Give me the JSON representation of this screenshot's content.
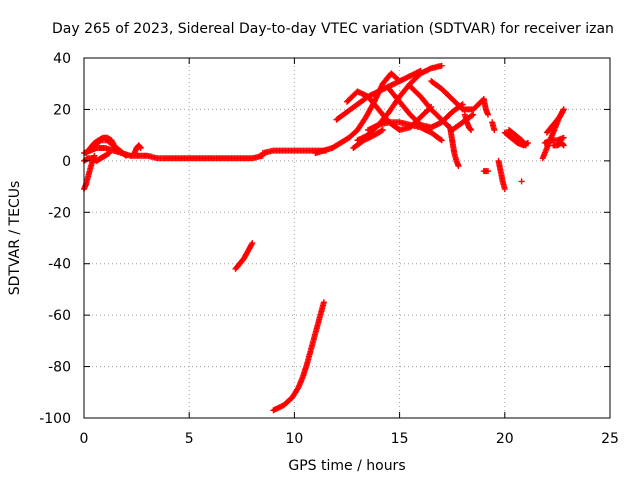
{
  "chart_data": {
    "type": "scatter",
    "title": "Day 265 of 2023, Sidereal Day-to-day VTEC variation (SDTVAR) for receiver izan",
    "xlabel": "GPS time / hours",
    "ylabel": "SDTVAR / TECUs",
    "xlim": [
      0,
      25
    ],
    "ylim": [
      -100,
      40
    ],
    "xticks": [
      0,
      5,
      10,
      15,
      20,
      25
    ],
    "yticks": [
      -100,
      -80,
      -60,
      -40,
      -20,
      0,
      20,
      40
    ],
    "grid": true,
    "marker": "+",
    "series_color": "#ff0000",
    "segments": [
      {
        "name": "baseline-early",
        "x": [
          0.0,
          0.3,
          0.6,
          1.0,
          1.4,
          1.8,
          2.2,
          2.6,
          3.0,
          3.5,
          4.0,
          4.5,
          5.0,
          5.5,
          6.0,
          6.5,
          7.0,
          7.5,
          8.0,
          8.5
        ],
        "y": [
          3,
          4,
          5,
          5,
          4,
          3,
          2,
          2,
          2,
          1,
          1,
          1,
          1,
          1,
          1,
          1,
          1,
          1,
          1,
          2
        ]
      },
      {
        "name": "baseline-mid",
        "x": [
          8.5,
          9.0,
          9.5,
          10.0,
          10.5,
          11.0,
          11.5
        ],
        "y": [
          3,
          4,
          4,
          4,
          4,
          4,
          4
        ]
      },
      {
        "name": "early-dip",
        "x": [
          0.0,
          0.1,
          0.2,
          0.3,
          0.4,
          0.5
        ],
        "y": [
          -11,
          -9,
          -6,
          -3,
          0,
          2
        ]
      },
      {
        "name": "early-lobe-a",
        "x": [
          0.1,
          0.3,
          0.5,
          0.7,
          0.9,
          1.1,
          1.3,
          1.5
        ],
        "y": [
          3,
          5,
          7,
          8,
          9,
          9,
          8,
          5
        ]
      },
      {
        "name": "early-lobe-b",
        "x": [
          0.5,
          0.8,
          1.1,
          1.4,
          1.7,
          2.0
        ],
        "y": [
          6,
          8,
          8,
          6,
          4,
          2
        ]
      },
      {
        "name": "early-blip",
        "x": [
          2.4,
          2.5,
          2.6,
          2.7
        ],
        "y": [
          3,
          5,
          6,
          5
        ]
      },
      {
        "name": "early-low",
        "x": [
          0.0,
          0.2,
          0.4,
          0.6,
          0.8,
          1.0,
          1.2
        ],
        "y": [
          0,
          1,
          1,
          0,
          1,
          2,
          3
        ]
      },
      {
        "name": "track-upper",
        "x": [
          7.2,
          7.4,
          7.6,
          7.8,
          8.0
        ],
        "y": [
          -42,
          -40,
          -38,
          -35,
          -32
        ]
      },
      {
        "name": "track-steep",
        "x": [
          9.0,
          9.5,
          9.9,
          10.2,
          10.4,
          10.6,
          10.8,
          11.0,
          11.2,
          11.4
        ],
        "y": [
          -97,
          -95,
          -92,
          -88,
          -84,
          -79,
          -73,
          -67,
          -61,
          -55
        ]
      },
      {
        "name": "baseline-late",
        "x": [
          11.0,
          11.4,
          11.8
        ],
        "y": [
          3,
          4,
          5
        ]
      },
      {
        "name": "arc-1",
        "x": [
          11.8,
          12.2,
          12.6,
          13.0,
          13.4,
          13.8,
          14.2,
          14.6,
          15.0
        ],
        "y": [
          5,
          7,
          9,
          12,
          17,
          23,
          30,
          34,
          31
        ]
      },
      {
        "name": "arc-2",
        "x": [
          12.0,
          12.5,
          13.0,
          13.5,
          14.0,
          14.5,
          15.0,
          15.5,
          16.0
        ],
        "y": [
          16,
          19,
          22,
          25,
          27,
          29,
          31,
          33,
          35
        ]
      },
      {
        "name": "arc-3",
        "x": [
          13.0,
          13.5,
          14.0,
          14.5,
          15.0,
          15.5,
          16.0,
          16.5,
          17.0
        ],
        "y": [
          8,
          10,
          14,
          19,
          25,
          30,
          34,
          36,
          37
        ]
      },
      {
        "name": "arc-4",
        "x": [
          12.5,
          13.0,
          13.5,
          14.0,
          14.5,
          15.0,
          15.5,
          16.0,
          16.5
        ],
        "y": [
          23,
          27,
          25,
          20,
          15,
          12,
          13,
          17,
          21
        ]
      },
      {
        "name": "arc-5",
        "x": [
          14.5,
          15.0,
          15.5,
          16.0,
          16.5,
          17.0,
          17.5,
          18.0
        ],
        "y": [
          28,
          23,
          18,
          14,
          13,
          15,
          19,
          22
        ]
      },
      {
        "name": "arc-6",
        "x": [
          15.5,
          16.0,
          16.5,
          17.0,
          17.5,
          18.0,
          18.5
        ],
        "y": [
          29,
          25,
          20,
          16,
          12,
          15,
          18
        ]
      },
      {
        "name": "arc-7",
        "x": [
          16.5,
          17.0,
          17.5,
          18.0,
          18.5,
          19.0
        ],
        "y": [
          31,
          28,
          24,
          20,
          20,
          24
        ]
      },
      {
        "name": "arc-8",
        "x": [
          13.5,
          14.0,
          14.5,
          15.0,
          15.5,
          16.0,
          16.5,
          17.0
        ],
        "y": [
          12,
          14,
          15,
          15,
          14,
          13,
          11,
          8
        ]
      },
      {
        "name": "arc-9",
        "x": [
          12.8,
          13.3,
          13.8,
          14.2
        ],
        "y": [
          5,
          8,
          10,
          12
        ]
      },
      {
        "name": "drop-1",
        "x": [
          17.4,
          17.5,
          17.6,
          17.7,
          17.8
        ],
        "y": [
          13,
          8,
          3,
          0,
          -2
        ]
      },
      {
        "name": "drop-2",
        "x": [
          18.1,
          18.2,
          18.3,
          18.4
        ],
        "y": [
          18,
          15,
          13,
          12
        ]
      },
      {
        "name": "drop-3",
        "x": [
          19.0,
          19.1,
          19.2
        ],
        "y": [
          24,
          20,
          18
        ]
      },
      {
        "name": "stray-1",
        "x": [
          19.0,
          19.2
        ],
        "y": [
          -4,
          -4
        ]
      },
      {
        "name": "stray-2",
        "x": [
          19.4,
          19.5
        ],
        "y": [
          15,
          12
        ]
      },
      {
        "name": "tail-a",
        "x": [
          19.7,
          19.8,
          19.9,
          20.0
        ],
        "y": [
          0,
          -4,
          -8,
          -11
        ]
      },
      {
        "name": "tail-b",
        "x": [
          20.0,
          20.3,
          20.6,
          20.9,
          21.1
        ],
        "y": [
          11,
          9,
          7,
          6,
          7
        ]
      },
      {
        "name": "tail-c",
        "x": [
          20.2,
          20.5,
          20.8,
          21.0
        ],
        "y": [
          12,
          10,
          8,
          6
        ]
      },
      {
        "name": "stray-3",
        "x": [
          20.8
        ],
        "y": [
          -8
        ]
      },
      {
        "name": "late-1",
        "x": [
          21.8,
          22.0,
          22.2,
          22.4,
          22.6,
          22.8
        ],
        "y": [
          1,
          5,
          9,
          13,
          17,
          20
        ]
      },
      {
        "name": "late-2",
        "x": [
          21.9,
          22.2,
          22.5,
          22.8
        ],
        "y": [
          7,
          8,
          8,
          9
        ]
      },
      {
        "name": "late-3",
        "x": [
          22.0,
          22.3,
          22.6,
          22.8
        ],
        "y": [
          11,
          14,
          17,
          20
        ]
      },
      {
        "name": "late-4",
        "x": [
          22.3,
          22.5,
          22.7,
          22.8
        ],
        "y": [
          6,
          6,
          7,
          6
        ]
      }
    ]
  }
}
